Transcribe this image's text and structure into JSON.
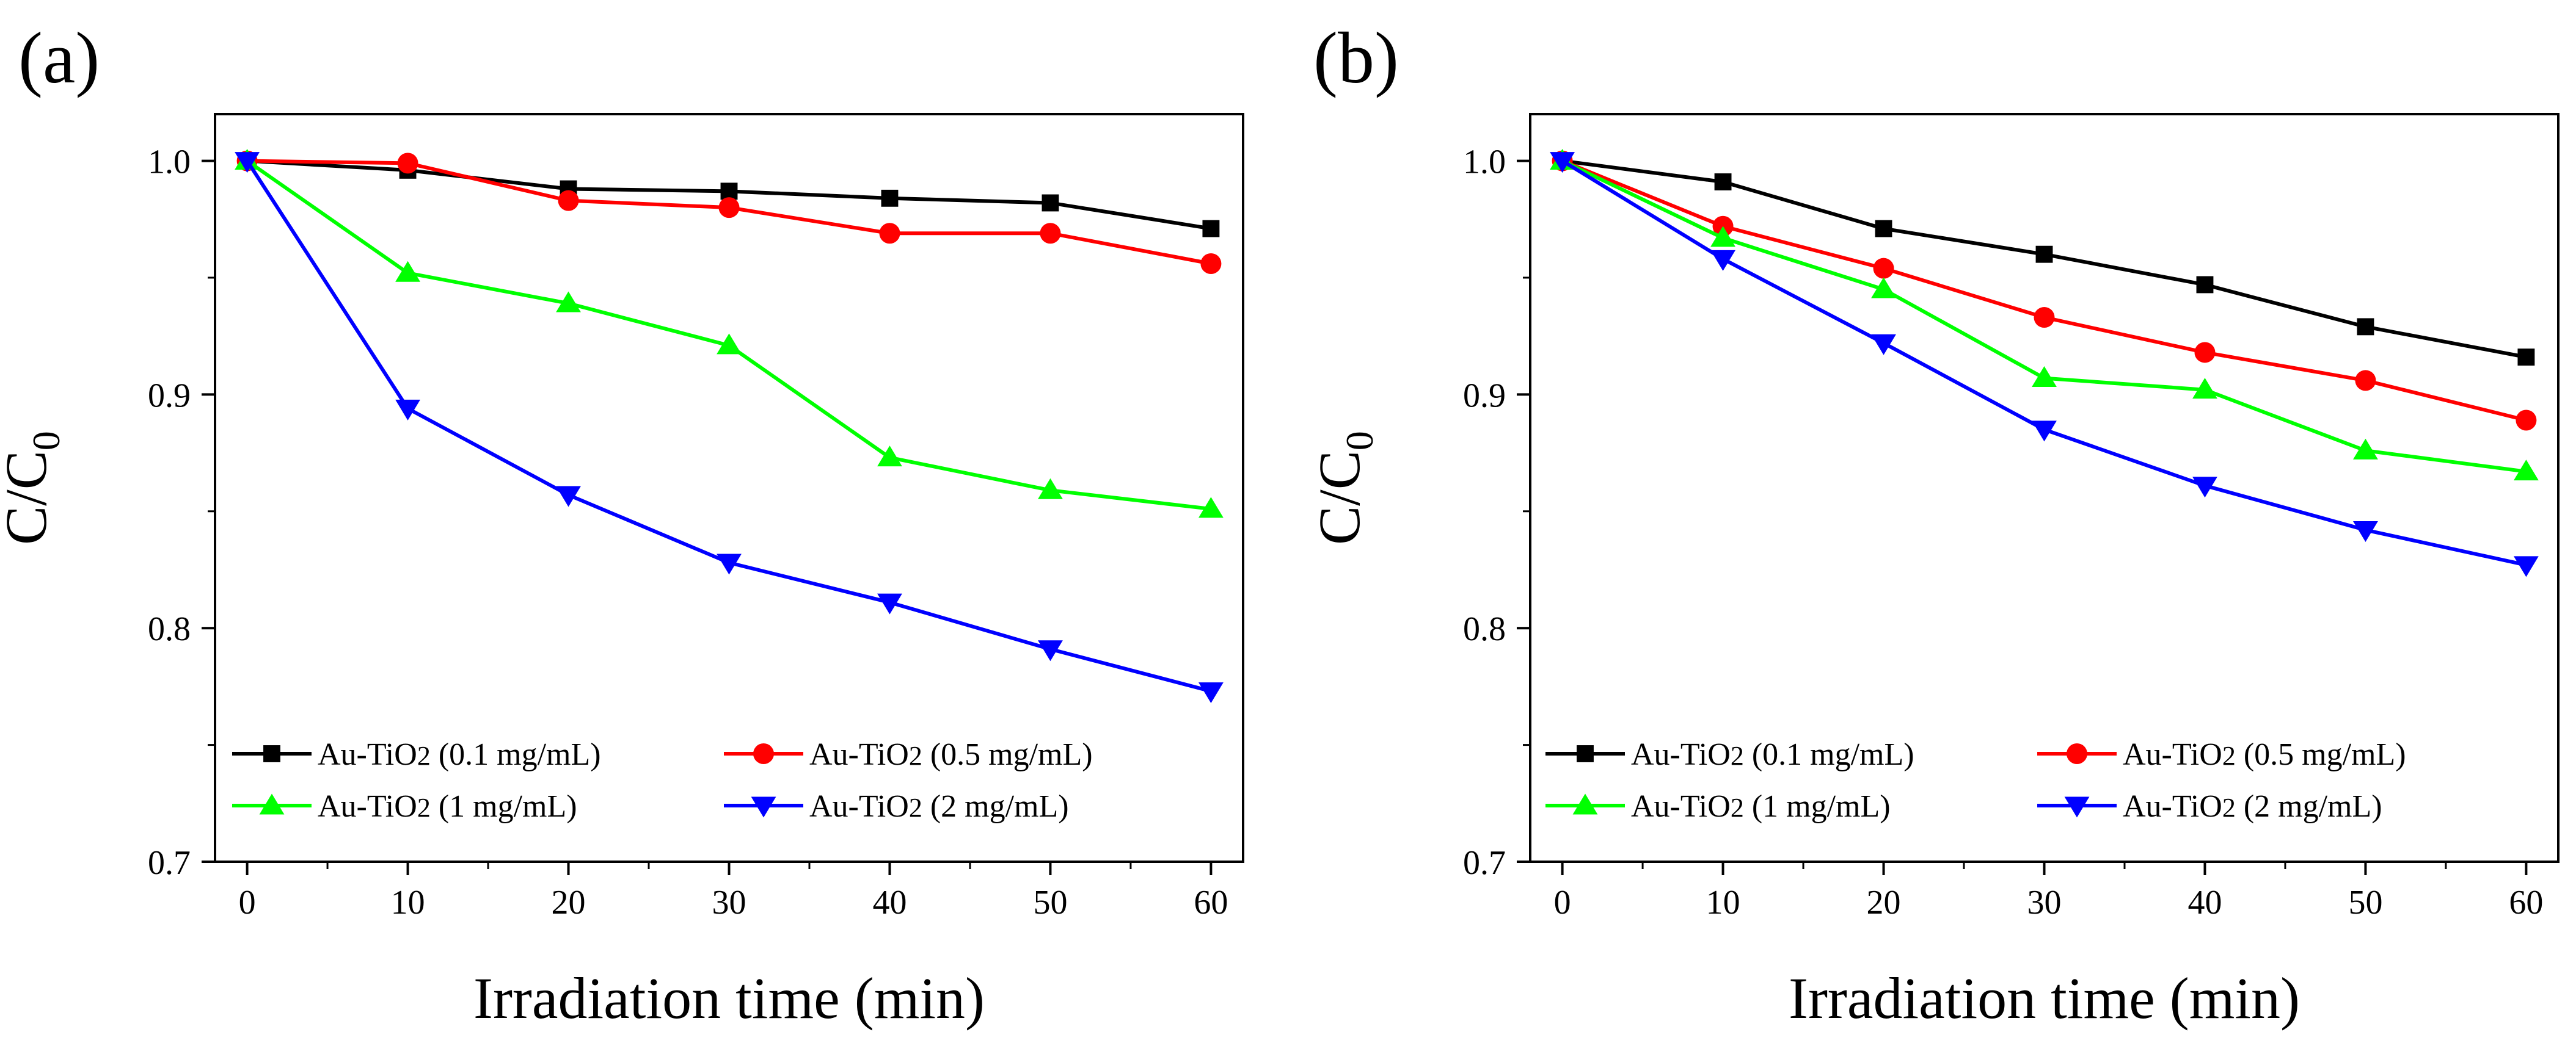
{
  "figure": {
    "panels": [
      "(a)",
      "(b)"
    ]
  },
  "chart_data": [
    {
      "type": "line",
      "panel_label": "(a)",
      "xlabel": "Irradiation time (min)",
      "ylabel_main": "C/C",
      "ylabel_sub": "0",
      "xlim": [
        -2,
        62
      ],
      "ylim": [
        0.7,
        1.02
      ],
      "xticks": [
        0,
        10,
        20,
        30,
        40,
        50,
        60
      ],
      "xtick_labels": [
        "0",
        "10",
        "20",
        "30",
        "40",
        "50",
        "60"
      ],
      "yticks": [
        0.7,
        0.8,
        0.9,
        1.0
      ],
      "ytick_labels": [
        "0.7",
        "0.8",
        "0.9",
        "1.0"
      ],
      "x": [
        0,
        10,
        20,
        30,
        40,
        50,
        60
      ],
      "legend_position": "bottom-left",
      "series": [
        {
          "name_main": "Au-TiO",
          "name_sub": "2",
          "name_rest": " (0.1 mg/mL)",
          "color": "#000000",
          "marker": "square",
          "values": [
            1.0,
            0.996,
            0.988,
            0.987,
            0.984,
            0.982,
            0.971
          ]
        },
        {
          "name_main": "Au-TiO",
          "name_sub": "2",
          "name_rest": " (0.5 mg/mL)",
          "color": "#ff0000",
          "marker": "circle",
          "values": [
            1.0,
            0.999,
            0.983,
            0.98,
            0.969,
            0.969,
            0.956
          ]
        },
        {
          "name_main": "Au-TiO",
          "name_sub": "2",
          "name_rest": " (1 mg/mL)",
          "color": "#00ff00",
          "marker": "triangle-up",
          "values": [
            1.0,
            0.952,
            0.939,
            0.921,
            0.873,
            0.859,
            0.851
          ]
        },
        {
          "name_main": "Au-TiO",
          "name_sub": "2",
          "name_rest": " (2 mg/mL)",
          "color": "#0000ff",
          "marker": "triangle-down",
          "values": [
            1.0,
            0.894,
            0.857,
            0.828,
            0.811,
            0.791,
            0.773
          ]
        }
      ]
    },
    {
      "type": "line",
      "panel_label": "(b)",
      "xlabel": "Irradiation time (min)",
      "ylabel_main": "C/C",
      "ylabel_sub": "0",
      "xlim": [
        -2,
        62
      ],
      "ylim": [
        0.7,
        1.02
      ],
      "xticks": [
        0,
        10,
        20,
        30,
        40,
        50,
        60
      ],
      "xtick_labels": [
        "0",
        "10",
        "20",
        "30",
        "40",
        "50",
        "60"
      ],
      "yticks": [
        0.7,
        0.8,
        0.9,
        1.0
      ],
      "ytick_labels": [
        "0.7",
        "0.8",
        "0.9",
        "1.0"
      ],
      "x": [
        0,
        10,
        20,
        30,
        40,
        50,
        60
      ],
      "legend_position": "bottom-left",
      "series": [
        {
          "name_main": "Au-TiO",
          "name_sub": "2",
          "name_rest": " (0.1 mg/mL)",
          "color": "#000000",
          "marker": "square",
          "values": [
            1.0,
            0.991,
            0.971,
            0.96,
            0.947,
            0.929,
            0.916
          ]
        },
        {
          "name_main": "Au-TiO",
          "name_sub": "2",
          "name_rest": " (0.5 mg/mL)",
          "color": "#ff0000",
          "marker": "circle",
          "values": [
            1.0,
            0.972,
            0.954,
            0.933,
            0.918,
            0.906,
            0.889
          ]
        },
        {
          "name_main": "Au-TiO",
          "name_sub": "2",
          "name_rest": " (1 mg/mL)",
          "color": "#00ff00",
          "marker": "triangle-up",
          "values": [
            1.0,
            0.967,
            0.945,
            0.907,
            0.902,
            0.876,
            0.867
          ]
        },
        {
          "name_main": "Au-TiO",
          "name_sub": "2",
          "name_rest": " (2 mg/mL)",
          "color": "#0000ff",
          "marker": "triangle-down",
          "values": [
            1.0,
            0.958,
            0.922,
            0.885,
            0.861,
            0.842,
            0.827
          ]
        }
      ]
    }
  ]
}
